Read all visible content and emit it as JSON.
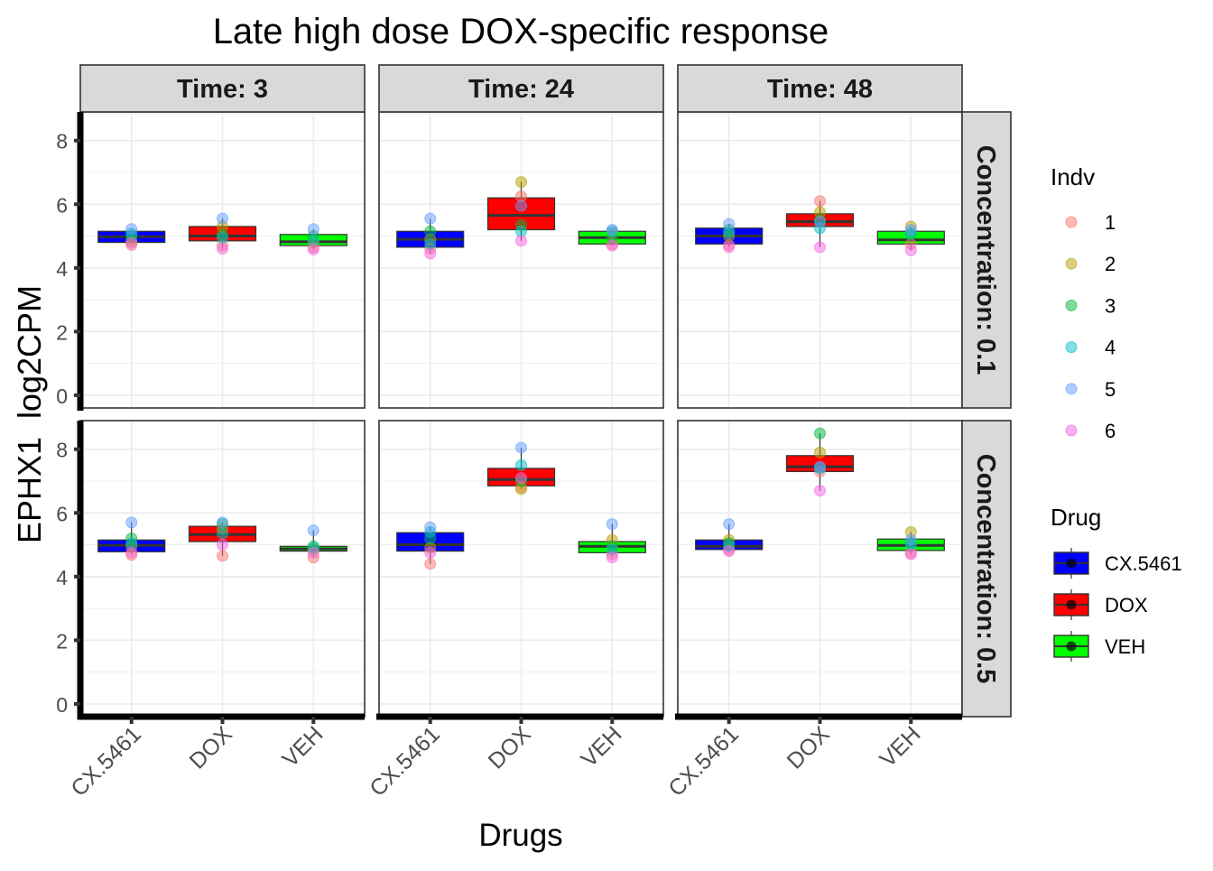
{
  "chart_data": {
    "type": "box",
    "title": "Late high dose DOX-specific response",
    "xlabel": "Drugs",
    "ylabel": "EPHX1  log2CPM",
    "ylim": [
      -0.4,
      8.9
    ],
    "yticks": [
      0,
      2,
      4,
      6,
      8
    ],
    "categories": [
      "CX.5461",
      "DOX",
      "VEH"
    ],
    "column_facets": [
      "Time: 3",
      "Time: 24",
      "Time: 48"
    ],
    "row_facets": [
      "Concentration: 0.1",
      "Concentration: 0.5"
    ],
    "grid": true,
    "colors": {
      "drug": {
        "CX.5461": "#0000ff",
        "DOX": "#ff0000",
        "VEH": "#00ff00"
      },
      "indv": {
        "1": "#f8766d",
        "2": "#b79f00",
        "3": "#00ba38",
        "4": "#00bfc4",
        "5": "#619cff",
        "6": "#f564e3"
      },
      "strip_fill": "#d9d9d9"
    },
    "legend": {
      "position": "right",
      "indv_title": "Indv",
      "indv_items": [
        "1",
        "2",
        "3",
        "4",
        "5",
        "6"
      ],
      "drug_title": "Drug",
      "drug_items": [
        "CX.5461",
        "DOX",
        "VEH"
      ]
    },
    "panels": [
      {
        "row": 0,
        "col": 0,
        "boxes": [
          {
            "drug": "CX.5461",
            "q1": 4.8,
            "median": 4.98,
            "q3": 5.15,
            "points": [
              4.72,
              4.85,
              5.0,
              5.08,
              5.22,
              4.78
            ]
          },
          {
            "drug": "DOX",
            "q1": 4.85,
            "median": 5.0,
            "q3": 5.3,
            "points": [
              4.7,
              5.3,
              5.05,
              4.95,
              5.55,
              4.6
            ]
          },
          {
            "drug": "VEH",
            "q1": 4.7,
            "median": 4.82,
            "q3": 5.05,
            "points": [
              4.65,
              4.8,
              5.0,
              4.85,
              5.22,
              4.58
            ]
          }
        ]
      },
      {
        "row": 0,
        "col": 1,
        "boxes": [
          {
            "drug": "CX.5461",
            "q1": 4.65,
            "median": 4.9,
            "q3": 5.15,
            "points": [
              4.6,
              4.9,
              5.15,
              4.75,
              5.55,
              4.45
            ]
          },
          {
            "drug": "DOX",
            "q1": 5.2,
            "median": 5.65,
            "q3": 6.2,
            "points": [
              6.25,
              6.7,
              5.35,
              5.15,
              5.95,
              4.85
            ]
          },
          {
            "drug": "VEH",
            "q1": 4.75,
            "median": 4.95,
            "q3": 5.15,
            "points": [
              4.75,
              5.1,
              4.95,
              5.15,
              5.2,
              4.7
            ]
          }
        ]
      },
      {
        "row": 0,
        "col": 2,
        "boxes": [
          {
            "drug": "CX.5461",
            "q1": 4.75,
            "median": 5.0,
            "q3": 5.25,
            "points": [
              4.72,
              5.0,
              5.2,
              5.1,
              5.38,
              4.65
            ]
          },
          {
            "drug": "DOX",
            "q1": 5.3,
            "median": 5.45,
            "q3": 5.7,
            "points": [
              6.1,
              5.75,
              5.5,
              5.25,
              5.45,
              4.65
            ]
          },
          {
            "drug": "VEH",
            "q1": 4.75,
            "median": 4.88,
            "q3": 5.15,
            "points": [
              4.75,
              5.3,
              5.05,
              5.1,
              5.2,
              4.55
            ]
          }
        ]
      },
      {
        "row": 1,
        "col": 0,
        "boxes": [
          {
            "drug": "CX.5461",
            "q1": 4.78,
            "median": 4.98,
            "q3": 5.15,
            "points": [
              4.68,
              4.95,
              5.2,
              5.05,
              5.7,
              4.75
            ]
          },
          {
            "drug": "DOX",
            "q1": 5.1,
            "median": 5.32,
            "q3": 5.58,
            "points": [
              4.65,
              5.5,
              5.65,
              5.35,
              5.7,
              5.0
            ]
          },
          {
            "drug": "VEH",
            "q1": 4.8,
            "median": 4.87,
            "q3": 4.95,
            "points": [
              4.6,
              4.85,
              4.95,
              4.9,
              5.45,
              4.75
            ]
          }
        ]
      },
      {
        "row": 1,
        "col": 1,
        "boxes": [
          {
            "drug": "CX.5461",
            "q1": 4.8,
            "median": 5.0,
            "q3": 5.38,
            "points": [
              4.4,
              4.9,
              5.2,
              5.4,
              5.55,
              4.75
            ]
          },
          {
            "drug": "DOX",
            "q1": 6.85,
            "median": 7.05,
            "q3": 7.4,
            "points": [
              6.8,
              6.75,
              7.0,
              7.5,
              8.05,
              7.1
            ]
          },
          {
            "drug": "VEH",
            "q1": 4.75,
            "median": 4.95,
            "q3": 5.1,
            "points": [
              4.7,
              5.15,
              4.95,
              4.85,
              5.65,
              4.6
            ]
          }
        ]
      },
      {
        "row": 1,
        "col": 2,
        "boxes": [
          {
            "drug": "CX.5461",
            "q1": 4.85,
            "median": 4.95,
            "q3": 5.15,
            "points": [
              4.85,
              5.15,
              5.05,
              4.95,
              5.65,
              4.8
            ]
          },
          {
            "drug": "DOX",
            "q1": 7.3,
            "median": 7.45,
            "q3": 7.8,
            "points": [
              7.3,
              7.9,
              8.5,
              7.4,
              7.45,
              6.7
            ]
          },
          {
            "drug": "VEH",
            "q1": 4.82,
            "median": 4.98,
            "q3": 5.18,
            "points": [
              4.75,
              5.4,
              5.05,
              5.0,
              5.15,
              4.7
            ]
          }
        ]
      }
    ]
  }
}
